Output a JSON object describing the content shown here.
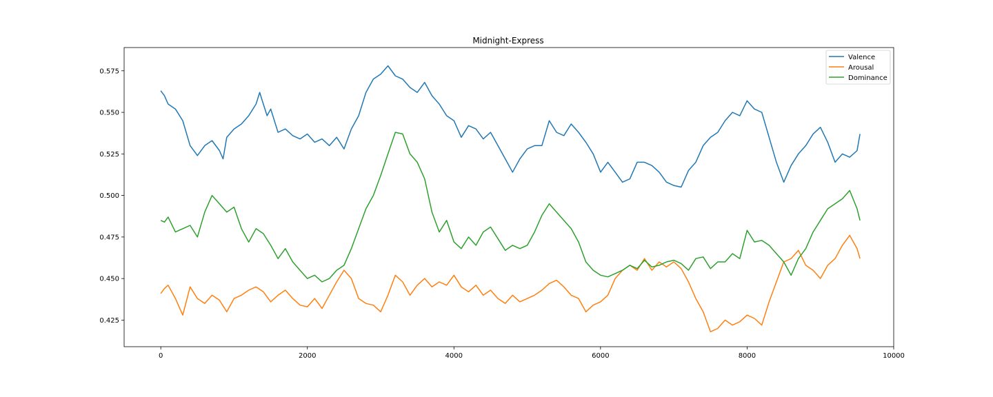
{
  "chart_data": {
    "type": "line",
    "title": "Midnight-Express",
    "xlabel": "",
    "ylabel": "",
    "xlim": [
      -500,
      10000
    ],
    "ylim": [
      0.409,
      0.589
    ],
    "xticks": [
      0,
      2000,
      4000,
      6000,
      8000,
      10000
    ],
    "xtick_labels": [
      "0",
      "2000",
      "4000",
      "6000",
      "8000",
      "10000"
    ],
    "yticks": [
      0.425,
      0.45,
      0.475,
      0.5,
      0.525,
      0.55,
      0.575
    ],
    "ytick_labels": [
      "0.425",
      "0.450",
      "0.475",
      "0.500",
      "0.525",
      "0.550",
      "0.575"
    ],
    "grid": false,
    "legend_position": "upper right",
    "series": [
      {
        "name": "Valence",
        "color": "#1f77b4",
        "x": [
          0,
          50,
          100,
          200,
          300,
          400,
          500,
          600,
          700,
          800,
          850,
          900,
          1000,
          1100,
          1200,
          1300,
          1350,
          1400,
          1450,
          1500,
          1600,
          1700,
          1800,
          1900,
          2000,
          2100,
          2200,
          2300,
          2400,
          2500,
          2600,
          2700,
          2800,
          2900,
          3000,
          3100,
          3200,
          3300,
          3400,
          3500,
          3600,
          3700,
          3800,
          3900,
          4000,
          4100,
          4200,
          4300,
          4400,
          4500,
          4600,
          4700,
          4800,
          4900,
          5000,
          5100,
          5200,
          5300,
          5400,
          5500,
          5600,
          5700,
          5800,
          5900,
          6000,
          6100,
          6200,
          6300,
          6400,
          6500,
          6600,
          6700,
          6800,
          6900,
          7000,
          7100,
          7200,
          7300,
          7400,
          7500,
          7600,
          7700,
          7800,
          7900,
          8000,
          8100,
          8200,
          8300,
          8400,
          8500,
          8600,
          8700,
          8800,
          8900,
          9000,
          9100,
          9200,
          9300,
          9400,
          9500,
          9540
        ],
        "y": [
          0.563,
          0.56,
          0.555,
          0.552,
          0.545,
          0.53,
          0.524,
          0.53,
          0.533,
          0.527,
          0.522,
          0.535,
          0.54,
          0.543,
          0.548,
          0.555,
          0.562,
          0.555,
          0.548,
          0.552,
          0.538,
          0.54,
          0.536,
          0.534,
          0.537,
          0.532,
          0.534,
          0.53,
          0.535,
          0.528,
          0.54,
          0.548,
          0.562,
          0.57,
          0.573,
          0.578,
          0.572,
          0.57,
          0.565,
          0.562,
          0.568,
          0.56,
          0.555,
          0.548,
          0.545,
          0.535,
          0.542,
          0.54,
          0.534,
          0.538,
          0.53,
          0.522,
          0.514,
          0.522,
          0.528,
          0.53,
          0.53,
          0.545,
          0.538,
          0.536,
          0.543,
          0.538,
          0.532,
          0.525,
          0.514,
          0.52,
          0.514,
          0.508,
          0.51,
          0.52,
          0.52,
          0.518,
          0.514,
          0.508,
          0.506,
          0.505,
          0.515,
          0.52,
          0.53,
          0.535,
          0.538,
          0.545,
          0.55,
          0.548,
          0.557,
          0.552,
          0.55,
          0.535,
          0.52,
          0.508,
          0.518,
          0.525,
          0.53,
          0.537,
          0.541,
          0.532,
          0.52,
          0.525,
          0.523,
          0.527,
          0.537
        ]
      },
      {
        "name": "Arousal",
        "color": "#ff7f0e",
        "x": [
          0,
          50,
          100,
          200,
          300,
          400,
          500,
          600,
          700,
          800,
          900,
          1000,
          1100,
          1200,
          1300,
          1400,
          1500,
          1600,
          1700,
          1800,
          1900,
          2000,
          2100,
          2200,
          2300,
          2400,
          2500,
          2600,
          2700,
          2800,
          2900,
          3000,
          3100,
          3200,
          3300,
          3400,
          3500,
          3600,
          3700,
          3800,
          3900,
          4000,
          4100,
          4200,
          4300,
          4400,
          4500,
          4600,
          4700,
          4800,
          4900,
          5000,
          5100,
          5200,
          5300,
          5400,
          5500,
          5600,
          5700,
          5800,
          5900,
          6000,
          6100,
          6200,
          6300,
          6400,
          6500,
          6600,
          6700,
          6800,
          6900,
          7000,
          7100,
          7200,
          7300,
          7400,
          7500,
          7600,
          7700,
          7800,
          7900,
          8000,
          8100,
          8200,
          8300,
          8400,
          8500,
          8600,
          8700,
          8800,
          8900,
          9000,
          9100,
          9200,
          9300,
          9400,
          9500,
          9540
        ],
        "y": [
          0.441,
          0.444,
          0.446,
          0.438,
          0.428,
          0.445,
          0.438,
          0.435,
          0.44,
          0.437,
          0.43,
          0.438,
          0.44,
          0.443,
          0.445,
          0.442,
          0.436,
          0.44,
          0.443,
          0.438,
          0.434,
          0.433,
          0.438,
          0.432,
          0.44,
          0.448,
          0.455,
          0.45,
          0.438,
          0.435,
          0.434,
          0.43,
          0.44,
          0.452,
          0.448,
          0.44,
          0.446,
          0.45,
          0.445,
          0.448,
          0.446,
          0.452,
          0.445,
          0.442,
          0.446,
          0.44,
          0.443,
          0.438,
          0.435,
          0.44,
          0.436,
          0.438,
          0.44,
          0.443,
          0.447,
          0.449,
          0.445,
          0.44,
          0.438,
          0.43,
          0.434,
          0.436,
          0.44,
          0.45,
          0.455,
          0.458,
          0.455,
          0.462,
          0.455,
          0.46,
          0.457,
          0.46,
          0.456,
          0.448,
          0.438,
          0.43,
          0.418,
          0.42,
          0.425,
          0.422,
          0.424,
          0.428,
          0.426,
          0.422,
          0.436,
          0.448,
          0.46,
          0.462,
          0.467,
          0.458,
          0.455,
          0.45,
          0.458,
          0.462,
          0.47,
          0.476,
          0.468,
          0.462
        ]
      },
      {
        "name": "Dominance",
        "color": "#2ca02c",
        "x": [
          0,
          50,
          100,
          200,
          300,
          400,
          500,
          600,
          700,
          800,
          900,
          1000,
          1100,
          1200,
          1300,
          1400,
          1500,
          1600,
          1700,
          1800,
          1900,
          2000,
          2100,
          2200,
          2300,
          2400,
          2500,
          2600,
          2700,
          2800,
          2900,
          3000,
          3100,
          3200,
          3300,
          3400,
          3500,
          3600,
          3700,
          3800,
          3900,
          4000,
          4100,
          4200,
          4300,
          4400,
          4500,
          4600,
          4700,
          4800,
          4900,
          5000,
          5100,
          5200,
          5300,
          5400,
          5500,
          5600,
          5700,
          5800,
          5900,
          6000,
          6100,
          6200,
          6300,
          6400,
          6500,
          6600,
          6700,
          6800,
          6900,
          7000,
          7100,
          7200,
          7300,
          7400,
          7500,
          7600,
          7700,
          7800,
          7900,
          8000,
          8100,
          8200,
          8300,
          8400,
          8500,
          8600,
          8700,
          8800,
          8900,
          9000,
          9100,
          9200,
          9300,
          9400,
          9500,
          9540
        ],
        "y": [
          0.485,
          0.484,
          0.487,
          0.478,
          0.48,
          0.482,
          0.475,
          0.49,
          0.5,
          0.495,
          0.49,
          0.493,
          0.48,
          0.472,
          0.48,
          0.477,
          0.47,
          0.462,
          0.468,
          0.46,
          0.455,
          0.45,
          0.452,
          0.448,
          0.45,
          0.455,
          0.458,
          0.468,
          0.48,
          0.492,
          0.5,
          0.512,
          0.525,
          0.538,
          0.537,
          0.525,
          0.52,
          0.51,
          0.49,
          0.478,
          0.485,
          0.472,
          0.468,
          0.475,
          0.47,
          0.478,
          0.481,
          0.474,
          0.467,
          0.47,
          0.468,
          0.47,
          0.478,
          0.488,
          0.495,
          0.49,
          0.485,
          0.48,
          0.472,
          0.46,
          0.455,
          0.452,
          0.451,
          0.453,
          0.455,
          0.458,
          0.456,
          0.461,
          0.457,
          0.458,
          0.46,
          0.461,
          0.459,
          0.455,
          0.462,
          0.463,
          0.456,
          0.46,
          0.46,
          0.465,
          0.462,
          0.479,
          0.472,
          0.473,
          0.47,
          0.465,
          0.46,
          0.452,
          0.462,
          0.468,
          0.478,
          0.485,
          0.492,
          0.495,
          0.498,
          0.503,
          0.492,
          0.485
        ]
      }
    ]
  }
}
